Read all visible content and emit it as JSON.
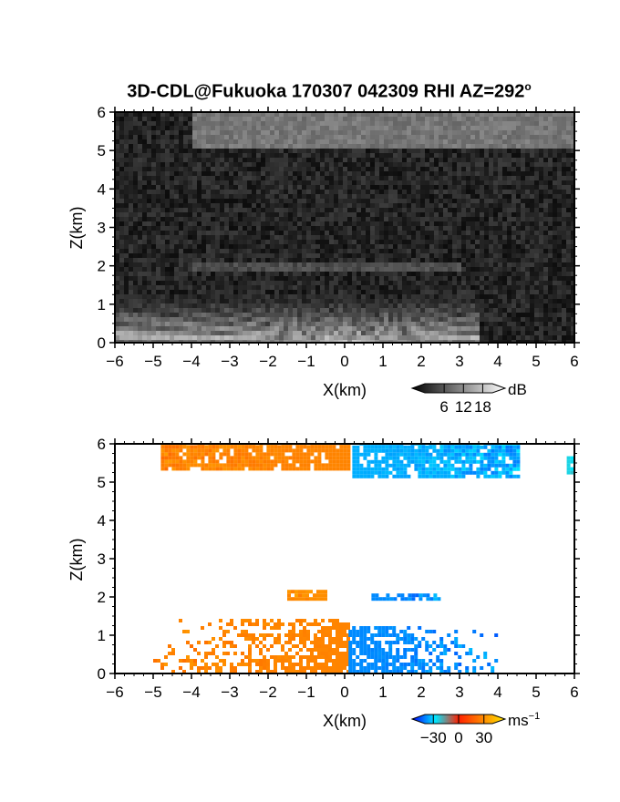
{
  "title": "3D-CDL@Fukuoka 170307 042309 RHI AZ=292",
  "title_superscript": "o",
  "chart_data": [
    {
      "type": "heatmap",
      "panel": "reflectivity",
      "xlabel": "X(km)",
      "ylabel": "Z(km)",
      "xlim": [
        -6,
        6
      ],
      "ylim": [
        0,
        6
      ],
      "x_ticks": [
        "-6",
        "-5",
        "-4",
        "-3",
        "-2",
        "-1",
        "0",
        "1",
        "2",
        "3",
        "4",
        "5",
        "6"
      ],
      "y_ticks": [
        "0",
        "1",
        "2",
        "3",
        "4",
        "5",
        "6"
      ],
      "colorbar": {
        "unit": "dB",
        "ticks": [
          "6",
          "12",
          "18"
        ],
        "range": [
          0,
          21
        ],
        "colormap": "grayscale"
      },
      "features": [
        {
          "name": "upper bright layer",
          "x_range": [
            -4,
            6
          ],
          "z_range": [
            5.0,
            6.0
          ],
          "level_db": 14
        },
        {
          "name": "mid-level streak",
          "x_range": [
            -4,
            3
          ],
          "z_range": [
            1.9,
            2.1
          ],
          "level_db": 9
        },
        {
          "name": "near-ground fan of beams",
          "x_range": [
            -6,
            3.5
          ],
          "z_range": [
            0,
            1.3
          ],
          "level_db": 16
        }
      ],
      "background_level_db": 3
    },
    {
      "type": "heatmap",
      "panel": "doppler_velocity",
      "xlabel": "X(km)",
      "ylabel": "Z(km)",
      "xlim": [
        -6,
        6
      ],
      "ylim": [
        0,
        6
      ],
      "x_ticks": [
        "-6",
        "-5",
        "-4",
        "-3",
        "-2",
        "-1",
        "0",
        "1",
        "2",
        "3",
        "4",
        "5",
        "6"
      ],
      "y_ticks": [
        "0",
        "1",
        "2",
        "3",
        "4",
        "5",
        "6"
      ],
      "colorbar": {
        "unit": "ms",
        "unit_exponent": "−1",
        "ticks": [
          "−30",
          "0",
          "30"
        ],
        "range": [
          -40,
          40
        ],
        "colormap": "blue-cyan-red-yellow"
      },
      "regions": [
        {
          "name": "upper layer approaching",
          "x_range": [
            -4.8,
            0.1
          ],
          "z_range": [
            5.3,
            6.0
          ],
          "velocity": 20
        },
        {
          "name": "upper layer receding",
          "x_range": [
            0.2,
            4.5
          ],
          "z_range": [
            5.1,
            6.0
          ],
          "velocity": -25
        },
        {
          "name": "far-right echo",
          "x_range": [
            5.8,
            6.0
          ],
          "z_range": [
            5.2,
            5.6
          ],
          "velocity": -18
        },
        {
          "name": "mid-level approaching",
          "x_range": [
            -1.5,
            -0.5
          ],
          "z_range": [
            1.9,
            2.1
          ],
          "velocity": 22
        },
        {
          "name": "mid-level receding",
          "x_range": [
            0.7,
            2.5
          ],
          "z_range": [
            1.9,
            2.05
          ],
          "velocity": -28
        },
        {
          "name": "boundary layer approaching",
          "x_range": [
            -5.0,
            0.1
          ],
          "z_range": [
            0,
            1.35
          ],
          "velocity": 20
        },
        {
          "name": "boundary layer receding",
          "x_range": [
            0.1,
            4.0
          ],
          "z_range": [
            0,
            1.2
          ],
          "velocity": -28
        }
      ]
    }
  ],
  "colors": {
    "cb_blue": "#0000ff",
    "cb_cyan": "#00e8ff",
    "cb_red": "#ff2000",
    "cb_yellow": "#ffe800"
  }
}
